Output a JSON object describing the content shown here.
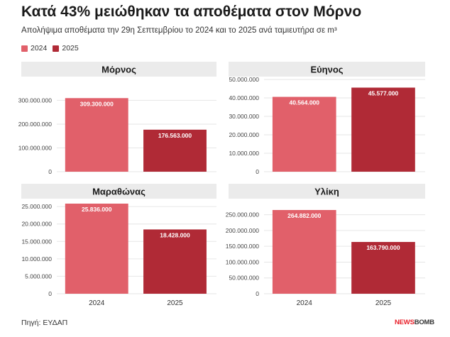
{
  "title": "Κατά 43% μειώθηκαν τα αποθέματα στον Μόρνο",
  "subtitle": "Απολήψιμα αποθέματα την 29η Σεπτεμβρίου το 2024 και το 2025 ανά ταμιευτήρα σε m³",
  "legend": [
    {
      "label": "2024",
      "color": "#e1606a"
    },
    {
      "label": "2025",
      "color": "#b02a36"
    }
  ],
  "source": "Πηγή: ΕΥΔΑΠ",
  "brand": {
    "part1": "NEWS",
    "part2": "BOMB"
  },
  "chart_data": [
    {
      "type": "bar",
      "title": "Μόρνος",
      "categories": [
        "2024",
        "2025"
      ],
      "values": [
        309300000,
        176563000
      ],
      "labels": [
        "309.300.000",
        "176.563.000"
      ],
      "yticks": [
        "0",
        "100.000.000",
        "200.000.000",
        "300.000.000"
      ],
      "ylim": [
        0,
        340000000
      ],
      "show_xlabels": false
    },
    {
      "type": "bar",
      "title": "Εύηνος",
      "categories": [
        "2024",
        "2025"
      ],
      "values": [
        40564000,
        45577000
      ],
      "labels": [
        "40.564.000",
        "45.577.000"
      ],
      "yticks": [
        "0",
        "10.000.000",
        "20.000.000",
        "30.000.000",
        "40.000.000",
        "50.000.000"
      ],
      "ylim": [
        0,
        50000000
      ],
      "show_xlabels": false
    },
    {
      "type": "bar",
      "title": "Μαραθώνας",
      "categories": [
        "2024",
        "2025"
      ],
      "values": [
        25836000,
        18428000
      ],
      "labels": [
        "25.836.000",
        "18.428.000"
      ],
      "yticks": [
        "0",
        "5.000.000",
        "10.000.000",
        "15.000.000",
        "20.000.000",
        "25.000.000"
      ],
      "ylim": [
        0,
        25836000
      ],
      "show_xlabels": true
    },
    {
      "type": "bar",
      "title": "Υλίκη",
      "categories": [
        "2024",
        "2025"
      ],
      "values": [
        264882000,
        163790000
      ],
      "labels": [
        "264.882.000",
        "163.790.000"
      ],
      "yticks": [
        "0",
        "50.000.000",
        "100.000.000",
        "150.000.000",
        "200.000.000",
        "250.000.000"
      ],
      "ylim": [
        0,
        264882000
      ],
      "show_xlabels": true
    }
  ]
}
